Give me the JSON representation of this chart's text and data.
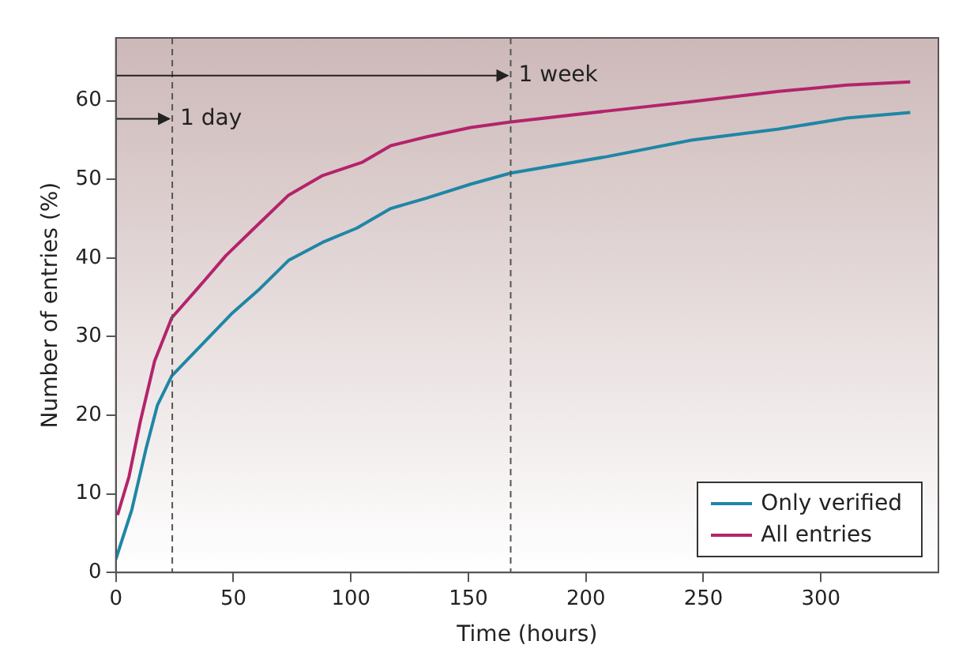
{
  "chart_data": {
    "type": "line",
    "xlabel": "Time (hours)",
    "ylabel": "Number of entries (%)",
    "xlim": [
      0,
      350
    ],
    "xticks": [
      0,
      50,
      100,
      150,
      200,
      250,
      300
    ],
    "ylim": [
      0,
      68
    ],
    "yticks": [
      0,
      10,
      20,
      30,
      40,
      50,
      60
    ],
    "grid": false,
    "legend": "bottom right",
    "marker": "none",
    "line_style": "solid",
    "series": [
      {
        "name": "Only verified",
        "color": "#1f86a6",
        "x": [
          0,
          6.8,
          12.8,
          17.7,
          23.8,
          34.7,
          49.2,
          61.3,
          73.5,
          88,
          102.5,
          117,
          132,
          151,
          168,
          209,
          245,
          282,
          311,
          338
        ],
        "values": [
          1.7,
          8.0,
          15.7,
          21.3,
          25.0,
          28.4,
          32.9,
          36.1,
          39.7,
          42.0,
          43.8,
          46.3,
          47.6,
          49.4,
          50.8,
          52.9,
          55.0,
          56.4,
          57.8,
          58.5
        ]
      },
      {
        "name": "All entries",
        "color": "#b3246b",
        "x": [
          0.7,
          5.6,
          10.4,
          16.5,
          23.8,
          34.7,
          46.8,
          58.9,
          73.5,
          88,
          105,
          117,
          132,
          151,
          168,
          209,
          245,
          282,
          311,
          338
        ],
        "values": [
          7.3,
          12.2,
          19.2,
          26.9,
          32.4,
          36.1,
          40.3,
          43.8,
          48.0,
          50.5,
          52.2,
          54.3,
          55.4,
          56.6,
          57.3,
          58.7,
          59.9,
          61.2,
          62.0,
          62.4
        ]
      }
    ],
    "ref_lines": [
      {
        "axis": "x",
        "value": 24,
        "color": "#555555",
        "line_style": "dashed"
      },
      {
        "axis": "x",
        "value": 168,
        "color": "#555555",
        "line_style": "dashed"
      }
    ],
    "annotations": [
      {
        "text": "1 day",
        "x": 24,
        "y": 57.7
      },
      {
        "text": "1 week",
        "x": 168,
        "y": 63.2
      }
    ]
  }
}
